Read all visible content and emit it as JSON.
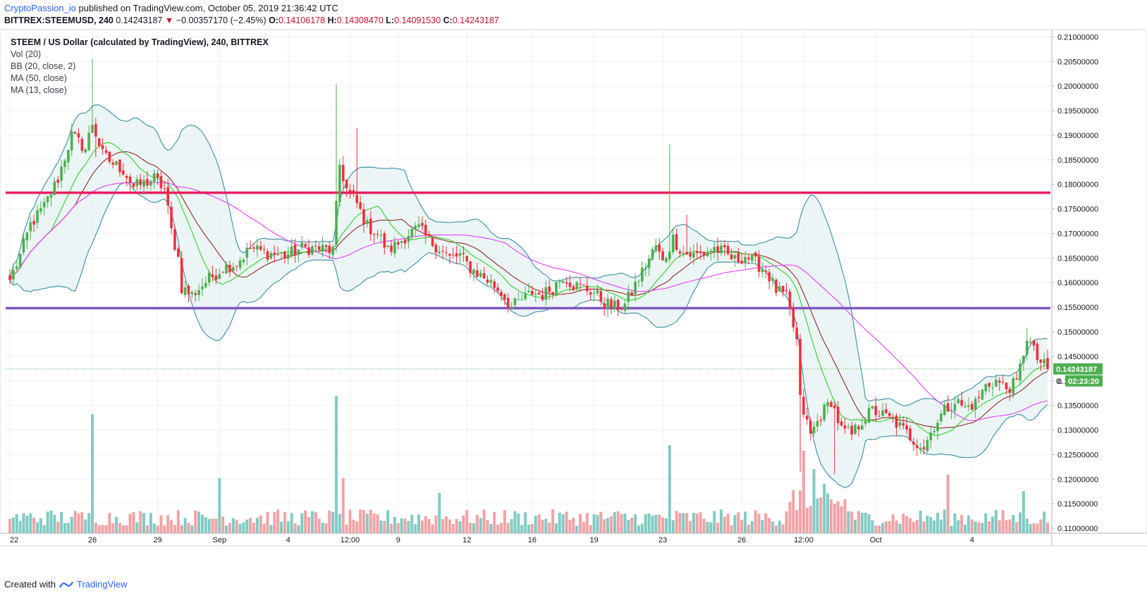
{
  "header": {
    "author": "CryptoPassion_io",
    "published_text": "published on TradingView.com, October 05, 2019 21:36:42 UTC",
    "symbol": "BITTREX:STEEMUSD, 240",
    "last": "0.14243187",
    "change_arrow": "▼",
    "change": "−0.00357170 (−2.45%)",
    "open_label": "O:",
    "open": "0.14106178",
    "high_label": "H:",
    "high": "0.14308470",
    "low_label": "L:",
    "low": "0.14091530",
    "close_label": "C:",
    "close": "0.14243187"
  },
  "legend": {
    "title": "STEEM / US Dollar (calculated by TradingView), 240, BITTREX",
    "vol": "Vol (20)",
    "bb": "BB (20, close, 2)",
    "ma50": "MA (50, close)",
    "ma13": "MA (13, close)"
  },
  "footer": {
    "created_with": "Created with",
    "brand": "TradingView"
  },
  "colors": {
    "up": "#4caf50",
    "down": "#f0303d",
    "up_vol": "#80cbc4",
    "down_vol": "#f0a3a6",
    "bb": "#3a8fa0",
    "bb_fill": "#e6f2f1",
    "ma50": "#e040fb",
    "ma13": "#8d2b2b",
    "ma_fast": "#2ed12e",
    "resistance": "#e91e63",
    "support": "#7e57c2",
    "price_badge": "#4caf50"
  },
  "chart_data": {
    "type": "candlestick",
    "ylim": [
      0.109,
      0.2115
    ],
    "y_ticks": [
      "0.21000000",
      "0.20500000",
      "0.20000000",
      "0.19500000",
      "0.19000000",
      "0.18500000",
      "0.18000000",
      "0.17500000",
      "0.17000000",
      "0.16500000",
      "0.16000000",
      "0.15500000",
      "0.15000000",
      "0.14500000",
      "0.14000000",
      "0.13500000",
      "0.13000000",
      "0.12500000",
      "0.12000000",
      "0.11500000",
      "0.11000000"
    ],
    "x_ticks": [
      "22",
      "26",
      "29",
      "Sep",
      "4",
      "12:00",
      "9",
      "12",
      "16",
      "19",
      "23",
      "26",
      "12:00",
      "Oct",
      "4"
    ],
    "horizontal_lines": [
      {
        "name": "resistance",
        "price": 0.1783
      },
      {
        "name": "support",
        "price": 0.1548
      }
    ],
    "current_price": "0.14243187",
    "countdown": "02:23:20",
    "axis_hidden_label": "0.",
    "anchors": [
      [
        0,
        0.1605
      ],
      [
        3,
        0.1655
      ],
      [
        6,
        0.1718
      ],
      [
        10,
        0.1755
      ],
      [
        14,
        0.1812
      ],
      [
        18,
        0.19
      ],
      [
        22,
        0.1872
      ],
      [
        24,
        0.1925
      ],
      [
        27,
        0.186
      ],
      [
        30,
        0.1842
      ],
      [
        33,
        0.183
      ],
      [
        36,
        0.1795
      ],
      [
        39,
        0.1802
      ],
      [
        42,
        0.1812
      ],
      [
        45,
        0.179
      ],
      [
        47,
        0.1705
      ],
      [
        49,
        0.165
      ],
      [
        50,
        0.159
      ],
      [
        53,
        0.1575
      ],
      [
        58,
        0.1608
      ],
      [
        62,
        0.163
      ],
      [
        66,
        0.164
      ],
      [
        70,
        0.167
      ],
      [
        75,
        0.166
      ],
      [
        80,
        0.1655
      ],
      [
        85,
        0.167
      ],
      [
        90,
        0.167
      ],
      [
        94,
        0.1665
      ],
      [
        96,
        0.184
      ],
      [
        98,
        0.179
      ],
      [
        101,
        0.176
      ],
      [
        104,
        0.1715
      ],
      [
        107,
        0.17
      ],
      [
        110,
        0.1665
      ],
      [
        113,
        0.168
      ],
      [
        116,
        0.17
      ],
      [
        119,
        0.171
      ],
      [
        122,
        0.1685
      ],
      [
        125,
        0.167
      ],
      [
        128,
        0.165
      ],
      [
        131,
        0.1655
      ],
      [
        134,
        0.163
      ],
      [
        137,
        0.1615
      ],
      [
        140,
        0.16
      ],
      [
        143,
        0.158
      ],
      [
        146,
        0.155
      ],
      [
        149,
        0.1565
      ],
      [
        152,
        0.158
      ],
      [
        155,
        0.1575
      ],
      [
        158,
        0.159
      ],
      [
        161,
        0.1615
      ],
      [
        164,
        0.1595
      ],
      [
        167,
        0.159
      ],
      [
        170,
        0.158
      ],
      [
        173,
        0.156
      ],
      [
        176,
        0.155
      ],
      [
        179,
        0.1555
      ],
      [
        182,
        0.1595
      ],
      [
        185,
        0.1635
      ],
      [
        188,
        0.1675
      ],
      [
        190,
        0.164
      ],
      [
        193,
        0.169
      ],
      [
        196,
        0.166
      ],
      [
        199,
        0.1655
      ],
      [
        202,
        0.166
      ],
      [
        205,
        0.167
      ],
      [
        208,
        0.166
      ],
      [
        211,
        0.1645
      ],
      [
        214,
        0.1655
      ],
      [
        217,
        0.164
      ],
      [
        220,
        0.1625
      ],
      [
        223,
        0.1585
      ],
      [
        226,
        0.157
      ],
      [
        229,
        0.148
      ],
      [
        230,
        0.136
      ],
      [
        233,
        0.129
      ],
      [
        236,
        0.133
      ],
      [
        239,
        0.136
      ],
      [
        242,
        0.13
      ],
      [
        245,
        0.129
      ],
      [
        248,
        0.132
      ],
      [
        251,
        0.134
      ],
      [
        254,
        0.133
      ],
      [
        257,
        0.132
      ],
      [
        260,
        0.13
      ],
      [
        263,
        0.128
      ],
      [
        266,
        0.1265
      ],
      [
        269,
        0.131
      ],
      [
        272,
        0.134
      ],
      [
        275,
        0.136
      ],
      [
        278,
        0.1345
      ],
      [
        281,
        0.1355
      ],
      [
        284,
        0.139
      ],
      [
        287,
        0.14
      ],
      [
        290,
        0.1385
      ],
      [
        293,
        0.1395
      ],
      [
        296,
        0.149
      ],
      [
        299,
        0.1445
      ],
      [
        302,
        0.1424
      ]
    ],
    "volume_spikes": [
      [
        24,
        0.65
      ],
      [
        95,
        0.75
      ],
      [
        192,
        0.48
      ],
      [
        231,
        0.45
      ],
      [
        97,
        0.3
      ],
      [
        125,
        0.22
      ],
      [
        61,
        0.3
      ],
      [
        273,
        0.32
      ],
      [
        295,
        0.23
      ],
      [
        234,
        0.35
      ]
    ]
  }
}
